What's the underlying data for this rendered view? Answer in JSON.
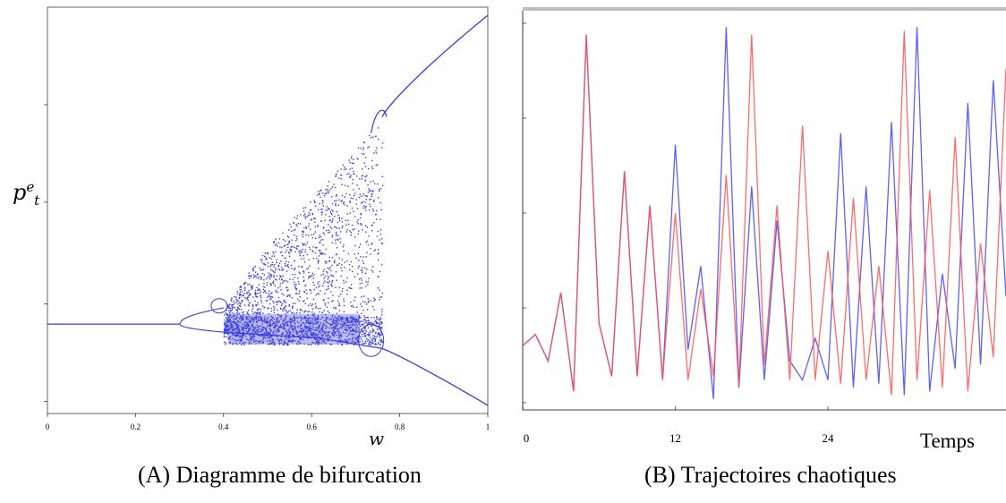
{
  "chart_data": [
    {
      "type": "scatter",
      "panel": "A",
      "caption": "(A) Diagramme de bifurcation",
      "xlabel": "w",
      "ylabel_base": "p",
      "ylabel_sup": "e",
      "ylabel_sub": "t",
      "xlim": [
        0,
        1
      ],
      "ylim": [
        0,
        1
      ],
      "x_ticks": [
        "0",
        "0.2",
        "0.4",
        "0.6",
        "0.8",
        "1"
      ],
      "grid": false,
      "color": "#3a3ae0",
      "fixed_branch": {
        "x": [
          0.0,
          0.3
        ],
        "y": [
          0.22,
          0.22
        ]
      },
      "upper_branch": {
        "x": [
          0.76,
          1.0
        ],
        "y": [
          0.73,
          0.98
        ]
      },
      "lower_branch": {
        "x": [
          0.76,
          1.0
        ],
        "y": [
          0.16,
          0.02
        ]
      },
      "chaotic_region": {
        "x_start": 0.4,
        "x_end": 0.76,
        "y_min": 0.17,
        "y_max_at_end": 0.72
      }
    },
    {
      "type": "line",
      "panel": "B",
      "caption": "(B) Trajectoires chaotiques",
      "xlabel": "Temps",
      "x_ticks": [
        "0",
        "12",
        "24"
      ],
      "xlim": [
        0,
        38
      ],
      "ylim": [
        0,
        1
      ],
      "grid": false,
      "series": [
        {
          "color": "#4444ee",
          "x": [
            0,
            1,
            2,
            3,
            4,
            5,
            6,
            7,
            8,
            9,
            10,
            11,
            12,
            13,
            14,
            15,
            16,
            17,
            18,
            19,
            20,
            21,
            22,
            23,
            24,
            25,
            26,
            27,
            28,
            29,
            30,
            31,
            32,
            33,
            34,
            35,
            36,
            37,
            38
          ],
          "values": [
            0.15,
            0.18,
            0.11,
            0.29,
            0.03,
            0.97,
            0.21,
            0.07,
            0.61,
            0.07,
            0.52,
            0.06,
            0.68,
            0.14,
            0.36,
            0.01,
            0.99,
            0.04,
            0.57,
            0.06,
            0.48,
            0.11,
            0.06,
            0.17,
            0.06,
            0.71,
            0.04,
            0.57,
            0.05,
            0.74,
            0.02,
            0.99,
            0.03,
            0.34,
            0.09,
            0.79,
            0.1,
            0.85,
            0.28
          ]
        },
        {
          "color": "#ff5050",
          "x": [
            0,
            1,
            2,
            3,
            4,
            5,
            6,
            7,
            8,
            9,
            10,
            11,
            12,
            13,
            14,
            15,
            16,
            17,
            18,
            19,
            20,
            21,
            22,
            23,
            24,
            25,
            26,
            27,
            28,
            29,
            30,
            31,
            32,
            33,
            34,
            35,
            36,
            37,
            38
          ],
          "values": [
            0.15,
            0.18,
            0.11,
            0.29,
            0.03,
            0.97,
            0.21,
            0.07,
            0.61,
            0.07,
            0.52,
            0.06,
            0.5,
            0.06,
            0.3,
            0.07,
            0.6,
            0.04,
            0.97,
            0.1,
            0.52,
            0.06,
            0.73,
            0.06,
            0.4,
            0.05,
            0.54,
            0.06,
            0.36,
            0.02,
            0.98,
            0.06,
            0.56,
            0.04,
            0.7,
            0.03,
            0.42,
            0.12,
            0.88
          ]
        }
      ]
    }
  ]
}
